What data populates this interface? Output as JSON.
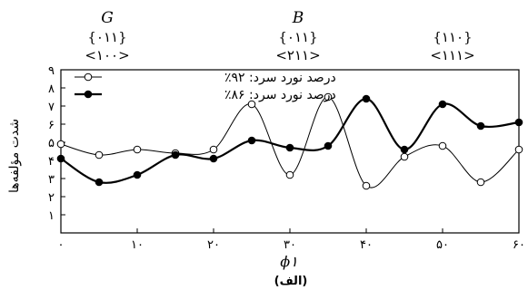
{
  "chart_data": {
    "type": "line",
    "xlabel": "ϕ۱",
    "ylabel": "شدت مؤلفه‌ها",
    "caption": "(الف)",
    "xlim": [
      0,
      60
    ],
    "ylim": [
      0,
      9
    ],
    "x_ticks": [
      0,
      10,
      20,
      30,
      40,
      50,
      60
    ],
    "x_tick_labels": [
      "۰",
      "۱۰",
      "۲۰",
      "۳۰",
      "۴۰",
      "۵۰",
      "۶۰"
    ],
    "y_ticks": [
      1,
      2,
      3,
      4,
      5,
      6,
      7,
      8,
      9
    ],
    "y_tick_labels": [
      "۱",
      "۲",
      "۳",
      "۴",
      "۵",
      "۶",
      "۷",
      "۸",
      "۹"
    ],
    "series": [
      {
        "name": "درصد نورد سرد: ۹۲٪",
        "marker": "open-circle",
        "color": "#000000",
        "x": [
          0,
          5,
          10,
          15,
          20,
          25,
          30,
          35,
          40,
          45,
          50,
          55,
          60
        ],
        "y": [
          4.9,
          4.3,
          4.6,
          4.4,
          4.6,
          7.1,
          3.2,
          7.5,
          2.6,
          4.2,
          4.8,
          2.8,
          4.6
        ]
      },
      {
        "name": "درصد نورد سرد: ۸۶٪",
        "marker": "filled-circle",
        "color": "#000000",
        "x": [
          0,
          5,
          10,
          15,
          20,
          25,
          30,
          35,
          40,
          45,
          50,
          55,
          60
        ],
        "y": [
          4.1,
          2.8,
          3.2,
          4.3,
          4.1,
          5.1,
          4.7,
          4.8,
          7.4,
          4.6,
          7.1,
          5.9,
          6.1
        ]
      }
    ],
    "annotations": [
      {
        "x": 0,
        "name": "G",
        "plane": "{۰۱۱}",
        "direction": "<۱۰۰>"
      },
      {
        "x": 30,
        "name": "B",
        "plane": "{۰۱۱}",
        "direction": "<۲۱۱>"
      },
      {
        "x": 50,
        "name": "",
        "plane": "{۱۱۰}",
        "direction": "<۱۱۱>"
      }
    ]
  }
}
